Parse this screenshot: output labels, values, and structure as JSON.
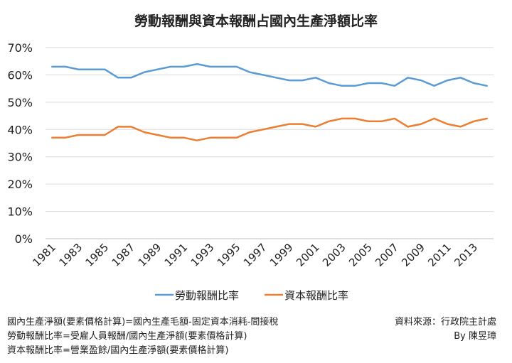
{
  "chart_data": {
    "type": "line",
    "title": "勞動報酬與資本報酬占國內生產淨額比率",
    "x": [
      1981,
      1982,
      1983,
      1984,
      1985,
      1986,
      1987,
      1988,
      1989,
      1990,
      1991,
      1992,
      1993,
      1994,
      1995,
      1996,
      1997,
      1998,
      1999,
      2000,
      2001,
      2002,
      2003,
      2004,
      2005,
      2006,
      2007,
      2008,
      2009,
      2010,
      2011,
      2012,
      2013,
      2014
    ],
    "x_tick_labels": [
      "1981",
      "1983",
      "1985",
      "1987",
      "1989",
      "1991",
      "1993",
      "1995",
      "1997",
      "1999",
      "2001",
      "2003",
      "2005",
      "2007",
      "2009",
      "2011",
      "2013"
    ],
    "y_tick_labels": [
      "0%",
      "10%",
      "20%",
      "30%",
      "40%",
      "50%",
      "60%",
      "70%"
    ],
    "ylim": [
      0,
      70
    ],
    "y_unit": "%",
    "grid": "horizontal",
    "legend_position": "bottom",
    "series": [
      {
        "name": "勞動報酬比率",
        "color": "#5b9bd5",
        "values": [
          63,
          63,
          62,
          62,
          62,
          59,
          59,
          61,
          62,
          63,
          63,
          64,
          63,
          63,
          63,
          61,
          60,
          59,
          58,
          58,
          59,
          57,
          56,
          56,
          57,
          57,
          56,
          59,
          58,
          56,
          58,
          59,
          57,
          56
        ]
      },
      {
        "name": "資本報酬比率",
        "color": "#ed7d31",
        "values": [
          37,
          37,
          38,
          38,
          38,
          41,
          41,
          39,
          38,
          37,
          37,
          36,
          37,
          37,
          37,
          39,
          40,
          41,
          42,
          42,
          41,
          43,
          44,
          44,
          43,
          43,
          44,
          41,
          42,
          44,
          42,
          41,
          43,
          44
        ]
      }
    ]
  },
  "notes": [
    "國內生產淨額(要素價格計算)=國內生產毛額-固定資本消耗-間接稅",
    "勞動報酬比率=受雇人員報酬/國內生產淨額(要素價格計算)",
    "資本報酬比率=營業盈餘/國內生產淨額(要素價格計算)"
  ],
  "source": "資料來源：行政院主計處",
  "author": "By 陳昱璋"
}
